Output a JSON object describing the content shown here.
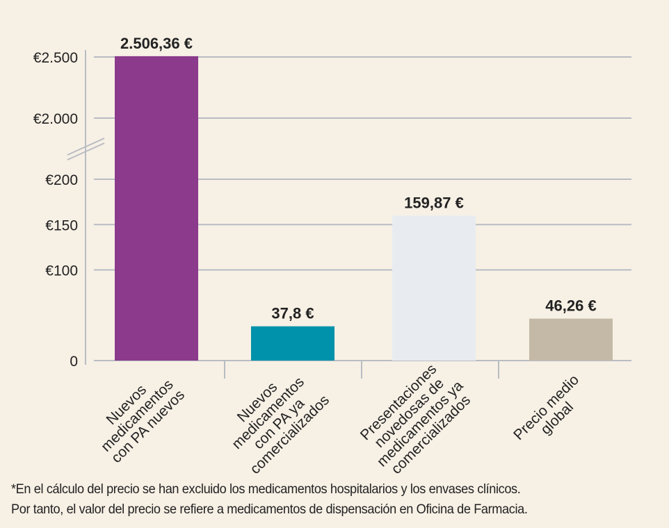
{
  "chart_data": {
    "type": "bar",
    "title": "",
    "xlabel": "",
    "ylabel": "",
    "categories": [
      [
        "Nuevos",
        "medicamentos",
        "con PA nuevos"
      ],
      [
        "Nuevos",
        "medicamentos",
        "con PA ya",
        "comercializados"
      ],
      [
        "Presentaciones",
        "novedosas de",
        "medicamentos ya",
        "comercializados"
      ],
      [
        "Precio medio",
        "global"
      ]
    ],
    "values": [
      2506.36,
      37.8,
      159.87,
      46.26
    ],
    "data_labels": [
      "2.506,36 €",
      "37,8 €",
      "159,87 €",
      "46,26 €"
    ],
    "colors": [
      "#8B3A8C",
      "#0092AA",
      "#E8ECF0",
      "#C4B9A6"
    ],
    "y_axis_break": {
      "lower_range": [
        0,
        200
      ],
      "upper_range": [
        2000,
        2500
      ]
    },
    "y_ticks": [
      {
        "value": 0,
        "label": "0"
      },
      {
        "value": 100,
        "label": "€100"
      },
      {
        "value": 150,
        "label": "€150"
      },
      {
        "value": 200,
        "label": "€200"
      },
      {
        "value": 2000,
        "label": "€2.000"
      },
      {
        "value": 2500,
        "label": "€2.500"
      }
    ],
    "grid": true
  },
  "footnote": [
    "*En el cálculo del precio se han excluido los medicamentos hospitalarios y los envases clínicos.",
    "Por tanto, el valor del precio se refiere a medicamentos de dispensación en Oficina de Farmacia."
  ]
}
